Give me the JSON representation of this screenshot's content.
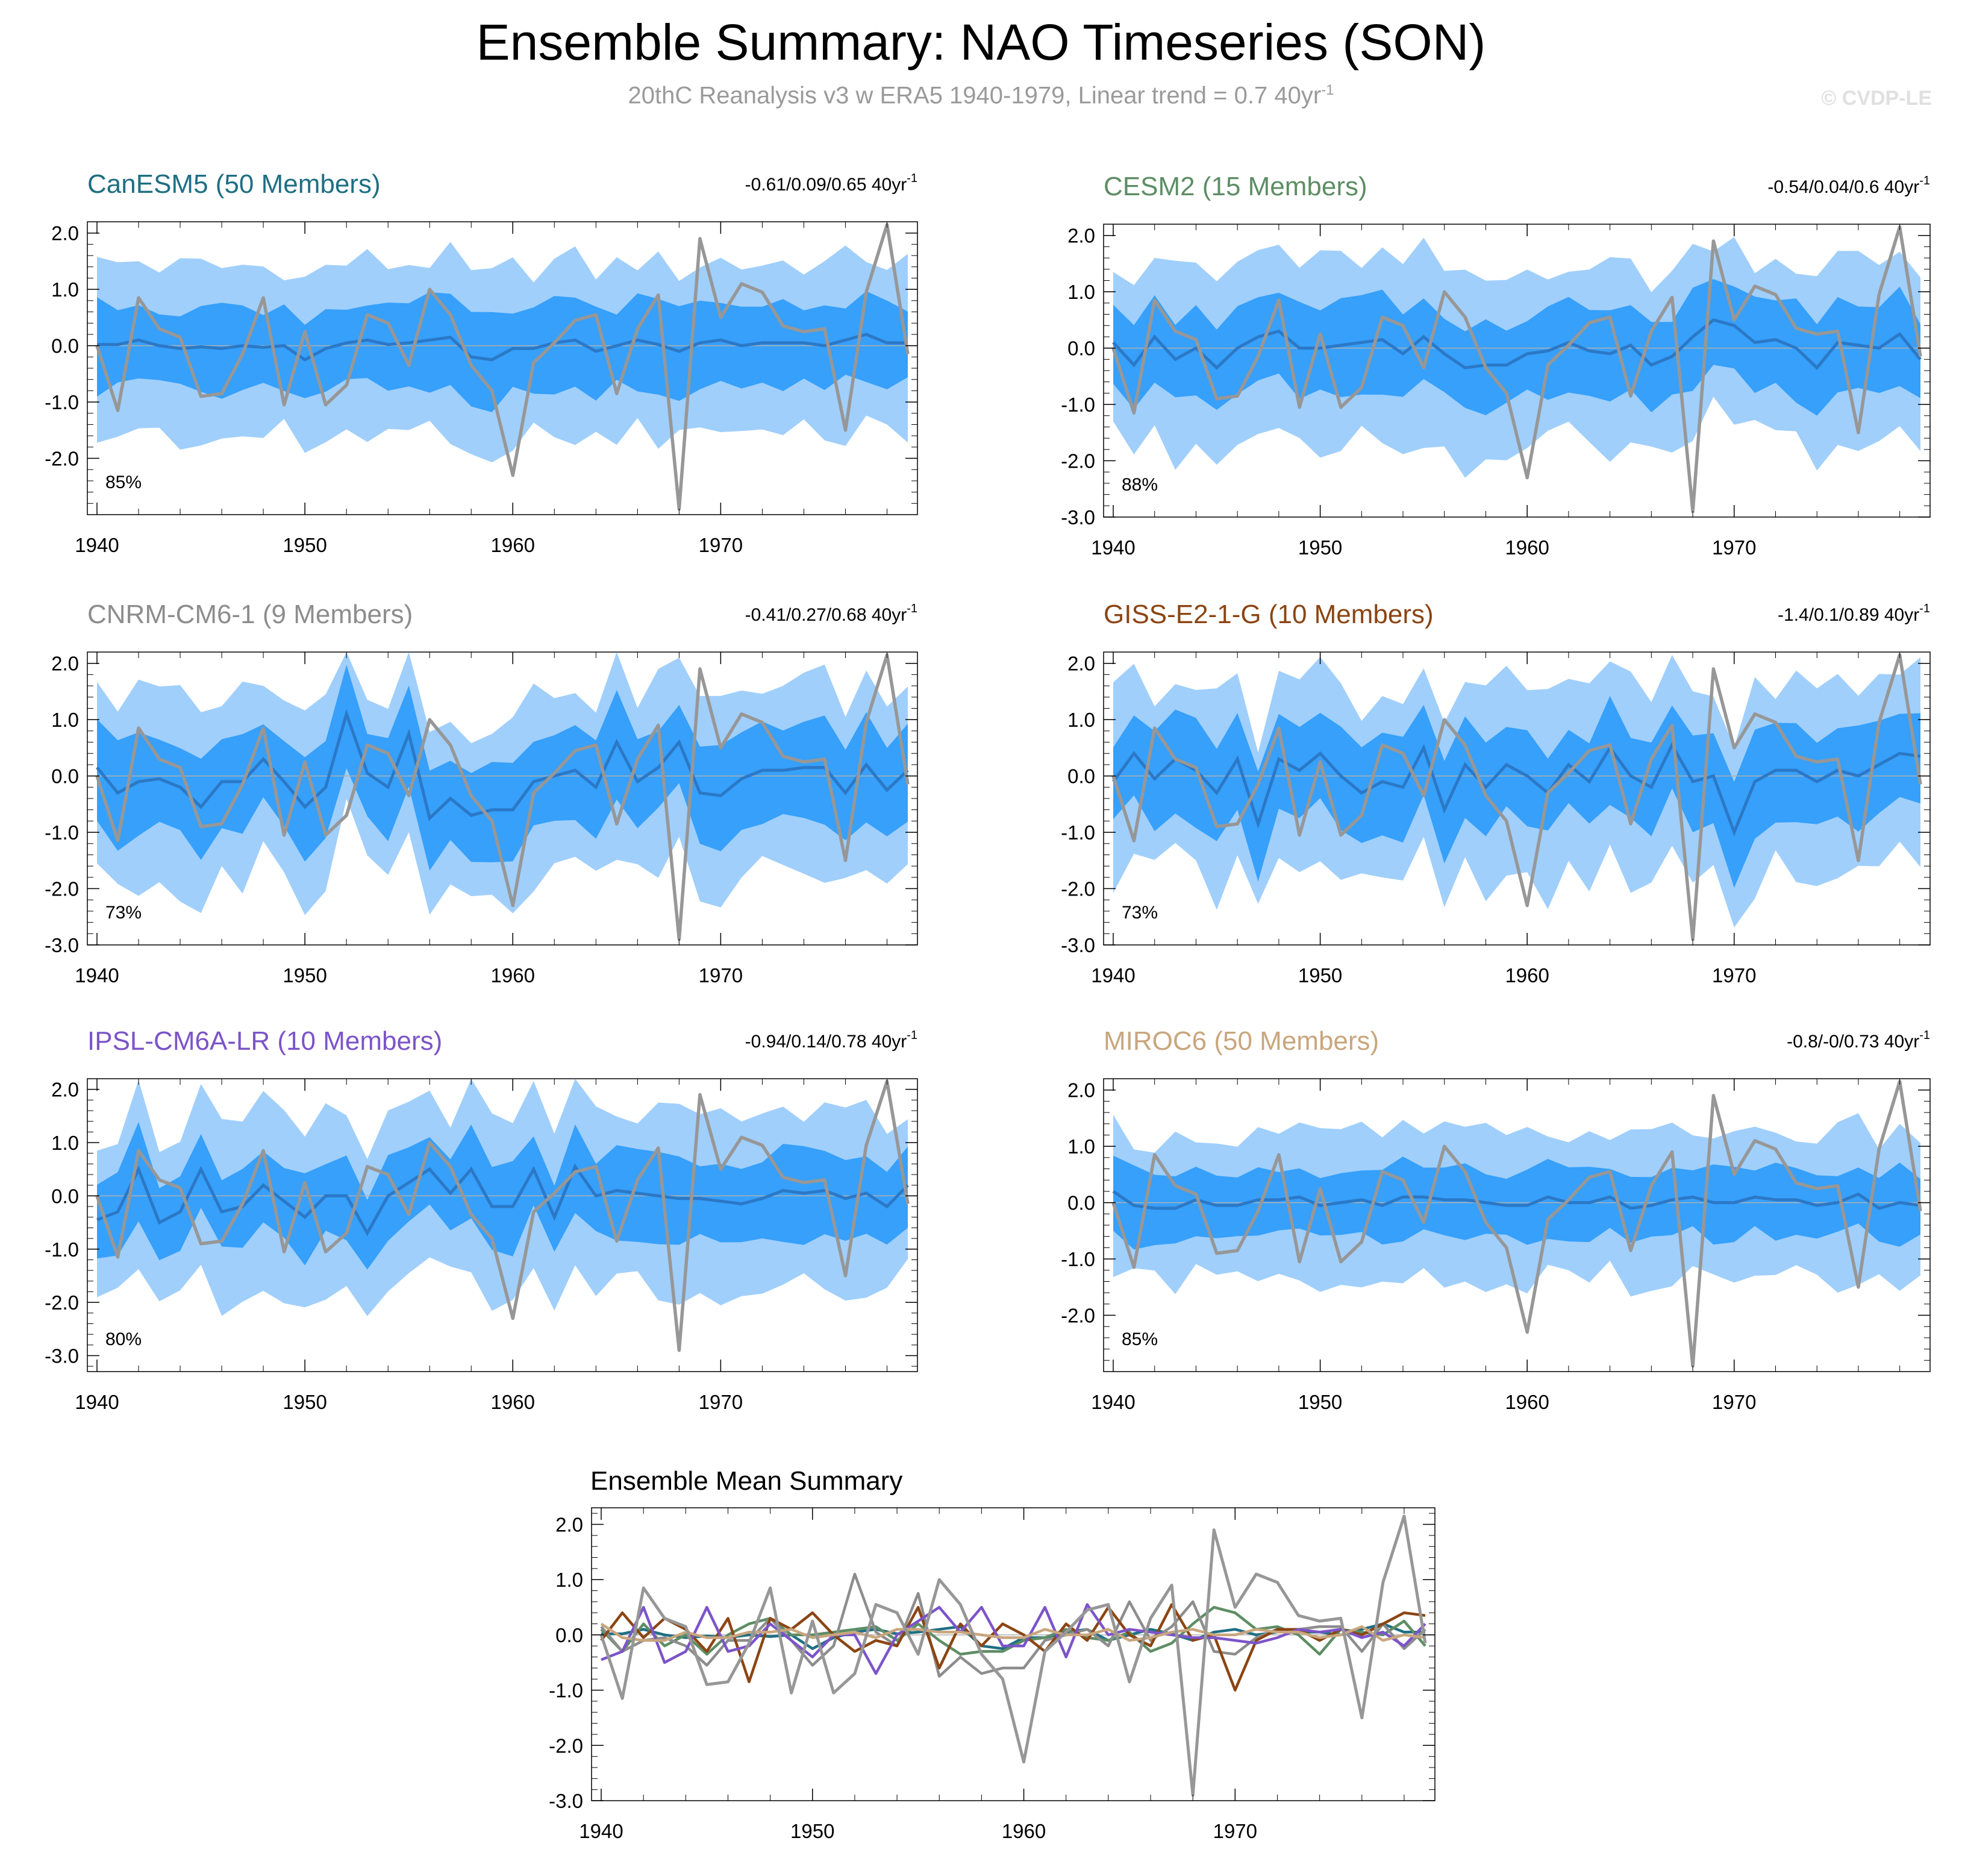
{
  "title": "Ensemble Summary: NAO Timeseries (SON)",
  "subtitle": {
    "text": "20thC Reanalysis v3 w ERA5 1940-1979, Linear trend = 0.7 40yr",
    "sup": "-1"
  },
  "copyright": "© CVDP-LE",
  "colors": {
    "band_outer": "#a0cffc",
    "band_inner": "#36a0fb",
    "ensemble_mean": "#2b78c6",
    "observations": "#979797",
    "zero_line": "#b0b0b0"
  },
  "chart_data": [
    {
      "type": "area",
      "title": "CanESM5 (50 Members)",
      "title_color": "#1f6f83",
      "stats": "-0.61/0.09/0.65 40yr",
      "stats_sup": "-1",
      "percent": "85%",
      "x_range": [
        1940,
        1979
      ],
      "ylim": [
        -3.0,
        2.2
      ],
      "yticks": [
        "2.0",
        "1.0",
        "0.0",
        "-1.0",
        "-2.0"
      ],
      "xticks": [
        "1940",
        "1950",
        "1960",
        "1970"
      ],
      "series": [
        {
          "offset": 0,
          "spread": 1.0,
          "mean": [
            0.02,
            0.02,
            0.1,
            0.0,
            -0.05,
            -0.02,
            -0.05,
            0.0,
            -0.03,
            0.0,
            -0.25,
            -0.05,
            0.05,
            0.1,
            0.02,
            0.05,
            0.1,
            0.15,
            -0.2,
            -0.25,
            -0.05,
            -0.05,
            0.05,
            0.1,
            -0.1,
            0.0,
            0.1,
            0.02,
            -0.1,
            0.05,
            0.1,
            0.0,
            0.05,
            0.05,
            0.05,
            0.0,
            0.1,
            0.2,
            0.05,
            0.05
          ]
        }
      ]
    },
    {
      "type": "area",
      "title": "CESM2 (15 Members)",
      "title_color": "#5e8d64",
      "stats": "-0.54/0.04/0.6 40yr",
      "stats_sup": "-1",
      "percent": "88%",
      "x_range": [
        1940,
        1979
      ],
      "ylim": [
        -3.0,
        2.2
      ],
      "yticks": [
        "2.0",
        "1.0",
        "0.0",
        "-1.0",
        "-2.0",
        "-3.0"
      ],
      "xticks": [
        "1940",
        "1950",
        "1960",
        "1970"
      ],
      "series": [
        {
          "offset": 0,
          "spread": 1.05,
          "mean": [
            0.1,
            -0.3,
            0.2,
            -0.2,
            0.0,
            -0.35,
            0.0,
            0.2,
            0.3,
            0.0,
            0.0,
            0.05,
            0.1,
            0.15,
            -0.1,
            0.2,
            -0.1,
            -0.35,
            -0.3,
            -0.3,
            -0.1,
            -0.05,
            0.1,
            -0.05,
            -0.1,
            0.05,
            -0.3,
            -0.15,
            0.2,
            0.5,
            0.4,
            0.1,
            0.15,
            0.0,
            -0.35,
            0.1,
            0.05,
            0.0,
            0.25,
            -0.2
          ]
        }
      ]
    },
    {
      "type": "area",
      "title": "CNRM-CM6-1 (9 Members)",
      "title_color": "#8d8d8d",
      "stats": "-0.41/0.27/0.68 40yr",
      "stats_sup": "-1",
      "percent": "73%",
      "x_range": [
        1940,
        1979
      ],
      "ylim": [
        -3.0,
        2.2
      ],
      "yticks": [
        "2.0",
        "1.0",
        "0.0",
        "-1.0",
        "-2.0",
        "-3.0"
      ],
      "xticks": [
        "1940",
        "1950",
        "1960",
        "1970"
      ],
      "series": [
        {
          "offset": 0,
          "spread": 1.1,
          "mean": [
            0.15,
            -0.3,
            -0.1,
            -0.05,
            -0.2,
            -0.55,
            -0.1,
            -0.1,
            0.3,
            -0.1,
            -0.55,
            -0.2,
            1.1,
            0.05,
            -0.2,
            0.75,
            -0.75,
            -0.4,
            -0.7,
            -0.6,
            -0.6,
            -0.1,
            0.0,
            0.1,
            -0.2,
            0.6,
            -0.1,
            0.15,
            0.6,
            -0.3,
            -0.35,
            -0.05,
            0.1,
            0.1,
            0.15,
            0.15,
            -0.3,
            0.2,
            -0.25,
            0.1
          ]
        }
      ]
    },
    {
      "type": "area",
      "title": "GISS-E2-1-G (10 Members)",
      "title_color": "#8b4513",
      "stats": "-1.4/0.1/0.89 40yr",
      "stats_sup": "-1",
      "percent": "73%",
      "x_range": [
        1940,
        1979
      ],
      "ylim": [
        -3.0,
        2.2
      ],
      "yticks": [
        "2.0",
        "1.0",
        "0.0",
        "-1.0",
        "-2.0",
        "-3.0"
      ],
      "xticks": [
        "1940",
        "1950",
        "1960",
        "1970"
      ],
      "series": [
        {
          "offset": 0,
          "spread": 1.1,
          "mean": [
            -0.1,
            0.4,
            -0.05,
            0.3,
            0.1,
            -0.3,
            0.3,
            -0.85,
            0.3,
            0.1,
            0.4,
            0.0,
            -0.3,
            -0.1,
            -0.2,
            0.5,
            -0.6,
            0.2,
            -0.2,
            0.2,
            0.0,
            -0.3,
            0.2,
            -0.1,
            0.5,
            0.0,
            -0.2,
            0.55,
            -0.1,
            0.0,
            -1.0,
            -0.1,
            0.1,
            0.1,
            -0.1,
            0.1,
            0.0,
            0.2,
            0.4,
            0.35
          ]
        }
      ]
    },
    {
      "type": "area",
      "title": "IPSL-CM6A-LR (10 Members)",
      "title_color": "#7c54c9",
      "stats": "-0.94/0.14/0.78 40yr",
      "stats_sup": "-1",
      "percent": "80%",
      "x_range": [
        1940,
        1979
      ],
      "ylim": [
        -3.3,
        2.2
      ],
      "yticks": [
        "2.0",
        "1.0",
        "0.0",
        "-1.0",
        "-2.0",
        "-3.0"
      ],
      "xticks": [
        "1940",
        "1950",
        "1960",
        "1970"
      ],
      "series": [
        {
          "offset": 0,
          "spread": 1.05,
          "mean": [
            -0.45,
            -0.3,
            0.5,
            -0.5,
            -0.3,
            0.5,
            -0.3,
            -0.2,
            0.2,
            -0.1,
            -0.4,
            0.0,
            0.0,
            -0.7,
            0.0,
            0.25,
            0.5,
            0.05,
            0.5,
            -0.2,
            -0.2,
            0.5,
            -0.4,
            0.55,
            0.0,
            0.1,
            0.05,
            0.0,
            -0.05,
            -0.05,
            -0.1,
            -0.15,
            -0.05,
            0.1,
            0.05,
            0.1,
            -0.05,
            0.05,
            -0.2,
            0.2
          ]
        }
      ]
    },
    {
      "type": "area",
      "title": "MIROC6 (50 Members)",
      "title_color": "#c9a67e",
      "stats": "-0.8/-0/0.73 40yr",
      "stats_sup": "-1",
      "percent": "85%",
      "x_range": [
        1940,
        1979
      ],
      "ylim": [
        -3.0,
        2.2
      ],
      "yticks": [
        "2.0",
        "1.0",
        "0.0",
        "-1.0",
        "-2.0"
      ],
      "xticks": [
        "1940",
        "1950",
        "1960",
        "1970"
      ],
      "series": [
        {
          "offset": 0,
          "spread": 0.85,
          "mean": [
            0.2,
            -0.05,
            -0.1,
            -0.1,
            0.05,
            -0.05,
            -0.05,
            0.05,
            0.05,
            0.1,
            -0.05,
            0.0,
            0.05,
            -0.05,
            0.1,
            0.1,
            0.05,
            0.05,
            0.0,
            -0.05,
            -0.05,
            0.1,
            0.0,
            0.0,
            0.1,
            -0.1,
            -0.05,
            0.05,
            0.1,
            0.0,
            0.0,
            0.1,
            0.05,
            0.05,
            -0.05,
            0.0,
            0.15,
            -0.1,
            0.0,
            -0.05
          ]
        }
      ]
    },
    {
      "type": "line",
      "title": "Ensemble Mean Summary",
      "title_color": "#000000",
      "x_range": [
        1940,
        1979
      ],
      "ylim": [
        -3.0,
        2.3
      ],
      "yticks": [
        "2.0",
        "1.0",
        "0.0",
        "-1.0",
        "-2.0",
        "-3.0"
      ],
      "xticks": [
        "1940",
        "1950",
        "1960",
        "1970"
      ]
    }
  ],
  "observations": [
    0.0,
    -1.15,
    0.85,
    0.3,
    0.15,
    -0.9,
    -0.85,
    -0.15,
    0.85,
    -1.05,
    0.25,
    -1.05,
    -0.7,
    0.55,
    0.4,
    -0.35,
    1.0,
    0.55,
    -0.35,
    -0.8,
    -2.3,
    -0.3,
    0.05,
    0.45,
    0.55,
    -0.85,
    0.3,
    0.9,
    -2.9,
    1.9,
    0.5,
    1.1,
    0.95,
    0.35,
    0.25,
    0.3,
    -1.5,
    0.95,
    2.15,
    -0.15
  ]
}
